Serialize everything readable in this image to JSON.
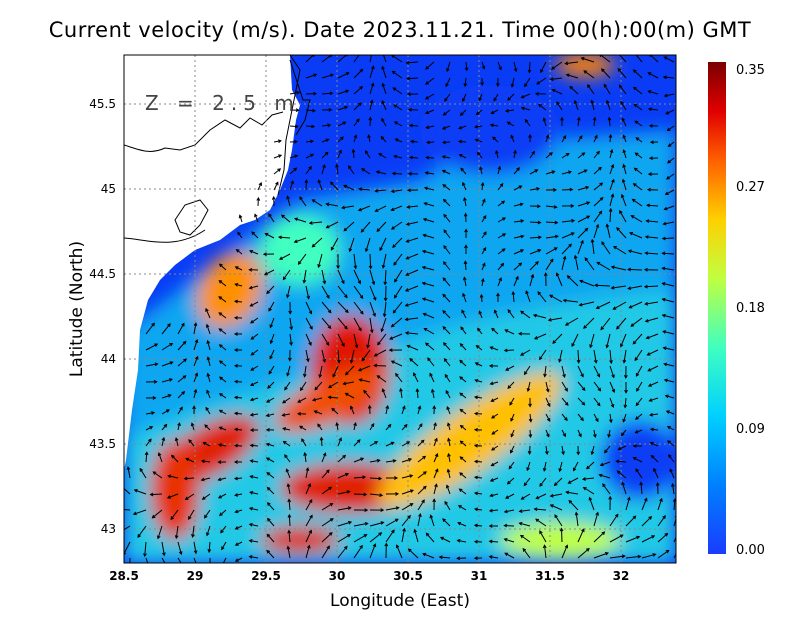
{
  "title": "Current velocity (m/s). Date 2023.11.21. Time 00(h):00(m) GMT",
  "depth_label": "Z = 2.5 m",
  "x_axis": {
    "label": "Longitude (East)",
    "ticks": [
      "28.5",
      "29",
      "29.5",
      "30",
      "30.5",
      "31",
      "31.5",
      "32"
    ],
    "range": [
      28.5,
      32.4
    ]
  },
  "y_axis": {
    "label": "Latitude (North)",
    "ticks": [
      "43",
      "43.5",
      "44",
      "44.5",
      "45",
      "45.5"
    ],
    "range": [
      42.8,
      45.8
    ]
  },
  "colorbar": {
    "ticks": [
      "0.00",
      "0.09",
      "0.18",
      "0.27",
      "0.35"
    ],
    "min": 0,
    "max": 0.35,
    "colors": [
      "#1a3cff",
      "#0080ff",
      "#00d0ff",
      "#40ffc0",
      "#c0ff40",
      "#ffd000",
      "#ff6000",
      "#e00000",
      "#7a0000"
    ]
  },
  "grid": "dotted"
}
